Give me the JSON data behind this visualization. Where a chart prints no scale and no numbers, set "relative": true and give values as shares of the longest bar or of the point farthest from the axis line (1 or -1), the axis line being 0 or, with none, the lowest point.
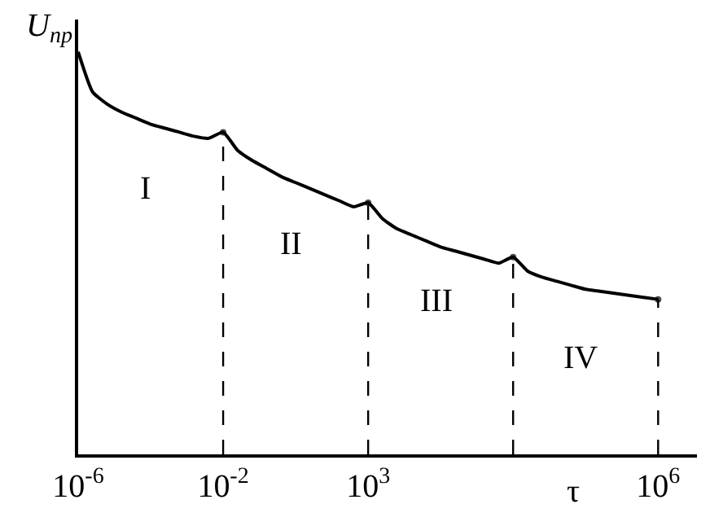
{
  "chart_data": {
    "type": "line",
    "relative": true,
    "ylabel": "U$_{пр}$",
    "xlabel": "τ",
    "categories": [
      "10$^{-6}$",
      null,
      null,
      null,
      null,
      null,
      null,
      null,
      null,
      null,
      "10$^{-2}$",
      null,
      null,
      null,
      null,
      null,
      null,
      null,
      null,
      null,
      "10$^{3}$",
      null,
      null,
      null,
      null,
      null,
      null,
      null,
      null,
      null,
      null,
      null,
      null,
      null,
      null,
      null,
      null,
      null,
      null,
      null,
      "10$^{6}$"
    ],
    "series": [
      {
        "color": "#000000",
        "line_style": "solid",
        "marker": "none",
        "values": [
          1.0,
          0.9,
          0.87,
          0.85,
          0.835,
          0.82,
          0.81,
          0.8,
          0.79,
          0.785,
          0.8,
          0.755,
          0.73,
          0.71,
          0.69,
          0.675,
          0.66,
          0.645,
          0.63,
          0.615,
          0.625,
          0.585,
          0.56,
          0.545,
          0.53,
          0.515,
          0.505,
          0.495,
          0.485,
          0.475,
          0.49,
          0.455,
          0.44,
          0.43,
          0.42,
          0.41,
          0.405,
          0.4,
          0.395,
          0.39,
          0.385
        ]
      },
      {
        "type": "lollipop",
        "color": "#000000",
        "line_style": "dashed",
        "marker": "circle",
        "values": [
          null,
          null,
          null,
          null,
          null,
          null,
          null,
          null,
          null,
          null,
          0.8,
          null,
          null,
          null,
          null,
          null,
          null,
          null,
          null,
          null,
          0.625,
          null,
          null,
          null,
          null,
          null,
          null,
          null,
          null,
          null,
          0.49,
          null,
          null,
          null,
          null,
          null,
          null,
          null,
          null,
          null,
          0.385
        ]
      }
    ],
    "annotations": [
      "I",
      "II",
      "III",
      "IV"
    ]
  }
}
